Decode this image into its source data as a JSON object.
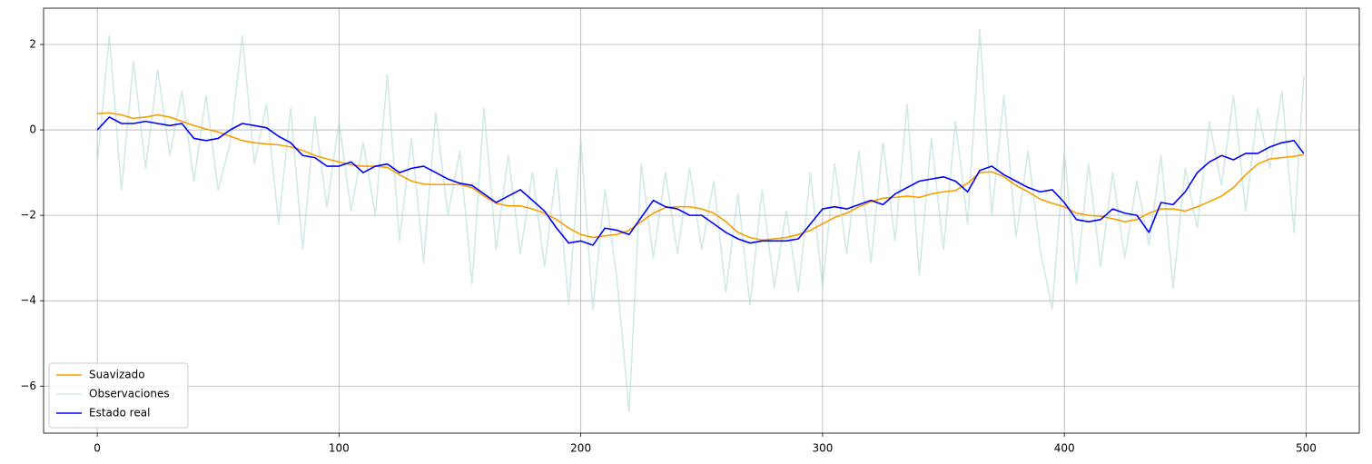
{
  "chart_data": {
    "type": "line",
    "x": [
      0,
      5,
      10,
      15,
      20,
      25,
      30,
      35,
      40,
      45,
      50,
      55,
      60,
      65,
      70,
      75,
      80,
      85,
      90,
      95,
      100,
      105,
      110,
      115,
      120,
      125,
      130,
      135,
      140,
      145,
      150,
      155,
      160,
      165,
      170,
      175,
      180,
      185,
      190,
      195,
      200,
      205,
      210,
      215,
      220,
      225,
      230,
      235,
      240,
      245,
      250,
      255,
      260,
      265,
      270,
      275,
      280,
      285,
      290,
      295,
      300,
      305,
      310,
      315,
      320,
      325,
      330,
      335,
      340,
      345,
      350,
      355,
      360,
      365,
      370,
      375,
      380,
      385,
      390,
      395,
      400,
      405,
      410,
      415,
      420,
      425,
      430,
      435,
      440,
      445,
      450,
      455,
      460,
      465,
      470,
      475,
      480,
      485,
      490,
      495,
      499
    ],
    "series": [
      {
        "name": "Observaciones",
        "color": "#b2dcd8",
        "opacity": 0.6,
        "values": [
          -0.8,
          2.2,
          -1.4,
          1.6,
          -0.9,
          1.4,
          -0.6,
          0.9,
          -1.2,
          0.8,
          -1.4,
          -0.3,
          2.2,
          -0.8,
          0.6,
          -2.2,
          0.5,
          -2.8,
          0.3,
          -1.8,
          0.2,
          -1.9,
          -0.3,
          -2.0,
          1.3,
          -2.6,
          -0.2,
          -3.1,
          0.4,
          -2.0,
          -0.5,
          -3.6,
          0.5,
          -2.8,
          -0.6,
          -2.9,
          -1.0,
          -3.2,
          -0.9,
          -4.1,
          -0.2,
          -4.2,
          -1.4,
          -3.5,
          -6.6,
          -0.8,
          -3.0,
          -1.0,
          -2.9,
          -0.9,
          -2.8,
          -1.2,
          -3.8,
          -1.5,
          -4.1,
          -1.4,
          -3.7,
          -1.9,
          -3.8,
          -1.0,
          -3.7,
          -0.8,
          -2.9,
          -0.5,
          -3.1,
          -0.3,
          -2.6,
          0.6,
          -3.4,
          -0.2,
          -2.8,
          0.2,
          -2.2,
          2.35,
          -2.0,
          0.8,
          -2.5,
          -0.5,
          -2.8,
          -4.2,
          -0.5,
          -3.6,
          -0.8,
          -3.2,
          -1.0,
          -3.0,
          -1.2,
          -2.7,
          -0.6,
          -3.7,
          -0.9,
          -2.3,
          0.2,
          -1.3,
          0.8,
          -1.9,
          0.5,
          -0.9,
          0.9,
          -2.4,
          1.25
        ]
      },
      {
        "name": "Suavizado",
        "color": "#f5a000",
        "opacity": 1,
        "values": [
          0.38,
          0.4,
          0.35,
          0.27,
          0.3,
          0.35,
          0.3,
          0.2,
          0.1,
          0.02,
          -0.05,
          -0.15,
          -0.25,
          -0.3,
          -0.33,
          -0.35,
          -0.4,
          -0.48,
          -0.6,
          -0.68,
          -0.75,
          -0.82,
          -0.85,
          -0.85,
          -0.88,
          -1.05,
          -1.2,
          -1.27,
          -1.28,
          -1.28,
          -1.28,
          -1.35,
          -1.55,
          -1.72,
          -1.78,
          -1.78,
          -1.85,
          -1.95,
          -2.1,
          -2.3,
          -2.45,
          -2.52,
          -2.48,
          -2.45,
          -2.35,
          -2.15,
          -1.95,
          -1.82,
          -1.8,
          -1.8,
          -1.85,
          -1.95,
          -2.15,
          -2.4,
          -2.52,
          -2.58,
          -2.55,
          -2.52,
          -2.45,
          -2.35,
          -2.2,
          -2.05,
          -1.95,
          -1.8,
          -1.68,
          -1.6,
          -1.58,
          -1.55,
          -1.58,
          -1.5,
          -1.45,
          -1.42,
          -1.25,
          -1.0,
          -0.98,
          -1.1,
          -1.3,
          -1.45,
          -1.62,
          -1.72,
          -1.8,
          -1.95,
          -2.0,
          -2.02,
          -2.08,
          -2.15,
          -2.1,
          -1.95,
          -1.85,
          -1.85,
          -1.9,
          -1.8,
          -1.68,
          -1.55,
          -1.35,
          -1.05,
          -0.8,
          -0.68,
          -0.65,
          -0.62,
          -0.58
        ]
      },
      {
        "name": "Estado real",
        "color": "#0000ff",
        "opacity": 1,
        "values": [
          0,
          0.3,
          0.15,
          0.15,
          0.2,
          0.15,
          0.1,
          0.15,
          -0.2,
          -0.25,
          -0.2,
          0.0,
          0.15,
          0.1,
          0.05,
          -0.15,
          -0.3,
          -0.6,
          -0.65,
          -0.85,
          -0.85,
          -0.75,
          -1.0,
          -0.85,
          -0.8,
          -1.0,
          -0.9,
          -0.85,
          -1.0,
          -1.15,
          -1.25,
          -1.3,
          -1.5,
          -1.7,
          -1.55,
          -1.4,
          -1.65,
          -1.9,
          -2.3,
          -2.65,
          -2.6,
          -2.7,
          -2.3,
          -2.35,
          -2.45,
          -2.05,
          -1.65,
          -1.8,
          -1.85,
          -2.0,
          -2.0,
          -2.2,
          -2.4,
          -2.55,
          -2.65,
          -2.6,
          -2.6,
          -2.6,
          -2.55,
          -2.2,
          -1.85,
          -1.8,
          -1.85,
          -1.75,
          -1.65,
          -1.75,
          -1.5,
          -1.35,
          -1.2,
          -1.15,
          -1.1,
          -1.2,
          -1.45,
          -0.95,
          -0.85,
          -1.05,
          -1.2,
          -1.35,
          -1.45,
          -1.4,
          -1.7,
          -2.1,
          -2.15,
          -2.1,
          -1.85,
          -1.95,
          -2.0,
          -2.4,
          -1.7,
          -1.75,
          -1.45,
          -1.0,
          -0.75,
          -0.6,
          -0.7,
          -0.55,
          -0.55,
          -0.4,
          -0.3,
          -0.25,
          -0.55
        ]
      }
    ],
    "legend_order": [
      "Suavizado",
      "Observaciones",
      "Estado real"
    ],
    "xlim": [
      -22.2,
      522
    ],
    "ylim": [
      -7.1,
      2.85
    ],
    "xticks": [
      0,
      100,
      200,
      300,
      400,
      500
    ],
    "yticks": [
      {
        "value": -6,
        "label": "−6"
      },
      {
        "value": -4,
        "label": "−4"
      },
      {
        "value": -2,
        "label": "−2"
      },
      0,
      2
    ],
    "grid": true,
    "legend": "lower left"
  }
}
